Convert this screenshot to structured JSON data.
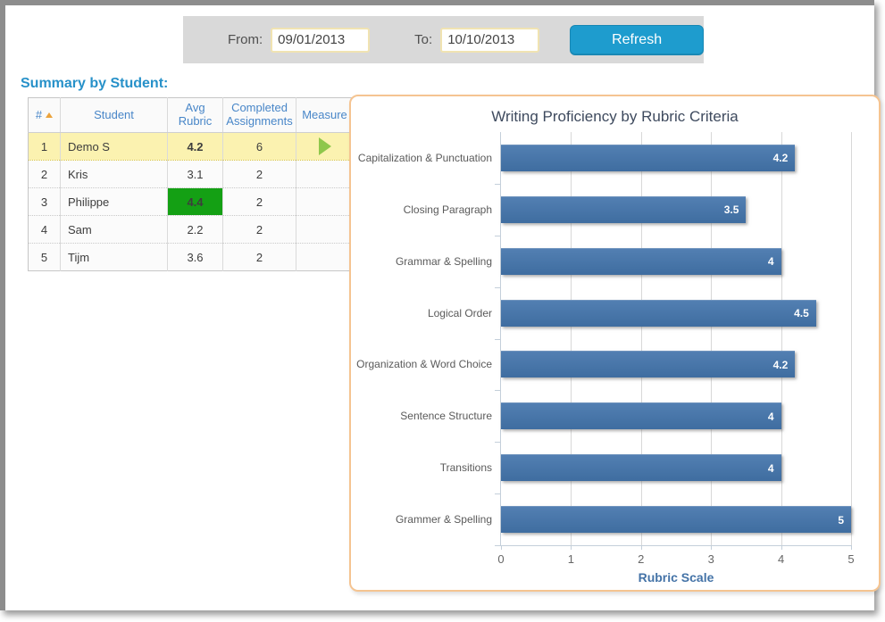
{
  "toolbar": {
    "from_label": "From:",
    "from_value": "09/01/2013",
    "to_label": "To:",
    "to_value": "10/10/2013",
    "refresh_label": "Refresh",
    "button_color": "#1e9cce"
  },
  "table": {
    "title": "Summary by Student:",
    "headers": {
      "num": "#",
      "student": "Student",
      "avg": "Avg Rubric",
      "completed": "Completed Assignments",
      "measure": "Measure"
    },
    "sort_column": "#",
    "sort_direction": "ascending",
    "highlight_color": "#14a014",
    "selected_row_color": "#fbf2b0",
    "rows": [
      {
        "num": 1,
        "student": "Demo S",
        "avg": 4.2,
        "completed": 6,
        "avg_highlight": true,
        "selected": true,
        "measure_icon": "play"
      },
      {
        "num": 2,
        "student": "Kris",
        "avg": 3.1,
        "completed": 2,
        "avg_highlight": false,
        "selected": false
      },
      {
        "num": 3,
        "student": "Philippe",
        "avg": 4.4,
        "completed": 2,
        "avg_highlight": true,
        "selected": false
      },
      {
        "num": 4,
        "student": "Sam",
        "avg": 2.2,
        "completed": 2,
        "avg_highlight": false,
        "selected": false
      },
      {
        "num": 5,
        "student": "Tijm",
        "avg": 3.6,
        "completed": 2,
        "avg_highlight": false,
        "selected": false
      }
    ]
  },
  "chart_data": {
    "type": "bar",
    "orientation": "horizontal",
    "title": "Writing Proficiency by Rubric Criteria",
    "categories": [
      "Capitalization & Punctuation",
      "Closing Paragraph",
      "Grammar & Spelling",
      "Logical Order",
      "Organization & Word Choice",
      "Sentence Structure",
      "Transitions",
      "Grammer & Spelling"
    ],
    "values": [
      4.2,
      3.5,
      4,
      4.5,
      4.2,
      4,
      4,
      5
    ],
    "xlabel": "Rubric Scale",
    "x_ticks": [
      0,
      1,
      2,
      3,
      4,
      5
    ],
    "xlim": [
      0,
      5
    ],
    "grid": true,
    "bar_color": "#4473a7",
    "panel_border_color": "#f5c491"
  }
}
